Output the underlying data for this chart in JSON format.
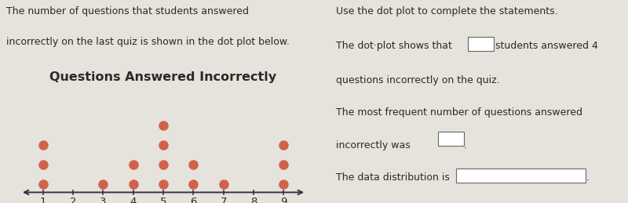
{
  "title": "Questions Answered Incorrectly",
  "left_text_line1": "The number of questions that students answered",
  "left_text_line2": "incorrectly on the last quiz is shown in the dot plot below.",
  "dot_counts": {
    "1": 3,
    "2": 0,
    "3": 1,
    "4": 2,
    "5": 4,
    "6": 2,
    "7": 1,
    "8": 0,
    "9": 3
  },
  "dot_color": "#d0624a",
  "axis_color": "#333344",
  "bg_color": "#e6e2dc",
  "title_fontsize": 11.5,
  "body_fontsize": 9.0,
  "tick_label_fontsize": 9.5
}
